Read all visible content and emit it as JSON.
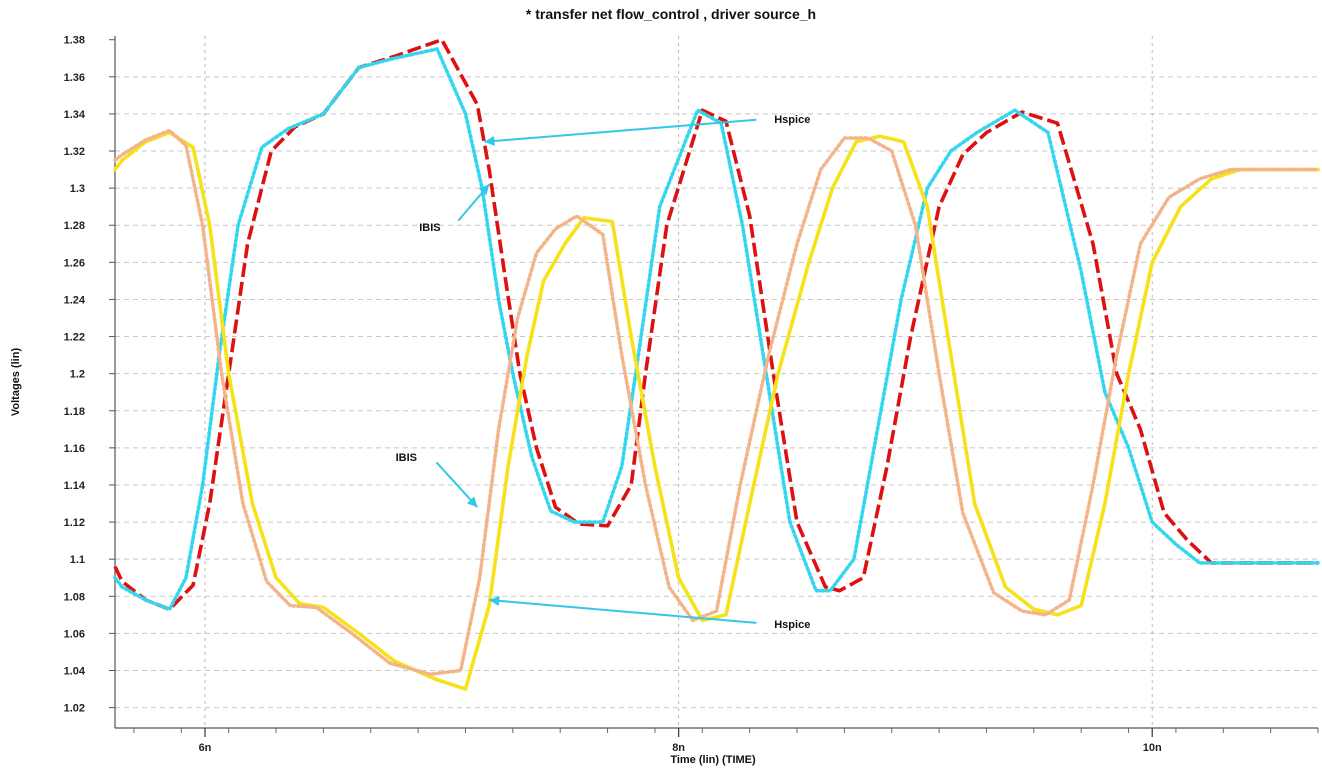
{
  "chart_data": {
    "type": "line",
    "title": "* transfer net flow_control , driver source_h",
    "xlabel": "Time (lin) (TIME)",
    "ylabel": "Voltages (lin)",
    "xlim": [
      5.62,
      10.7
    ],
    "ylim": [
      1.009,
      1.382
    ],
    "grid": true,
    "x_ticks": [
      {
        "value": 6,
        "label": "6n"
      },
      {
        "value": 8,
        "label": "8n"
      },
      {
        "value": 10,
        "label": "10n"
      }
    ],
    "y_ticks": [
      {
        "value": 1.38,
        "label": "1.38"
      },
      {
        "value": 1.36,
        "label": "1.36"
      },
      {
        "value": 1.34,
        "label": "1.34"
      },
      {
        "value": 1.32,
        "label": "1.32"
      },
      {
        "value": 1.3,
        "label": "1.3"
      },
      {
        "value": 1.28,
        "label": "1.28"
      },
      {
        "value": 1.26,
        "label": "1.26"
      },
      {
        "value": 1.24,
        "label": "1.24"
      },
      {
        "value": 1.22,
        "label": "1.22"
      },
      {
        "value": 1.2,
        "label": "1.2"
      },
      {
        "value": 1.18,
        "label": "1.18"
      },
      {
        "value": 1.16,
        "label": "1.16"
      },
      {
        "value": 1.14,
        "label": "1.14"
      },
      {
        "value": 1.12,
        "label": "1.12"
      },
      {
        "value": 1.1,
        "label": "1.1"
      },
      {
        "value": 1.08,
        "label": "1.08"
      },
      {
        "value": 1.06,
        "label": "1.06"
      },
      {
        "value": 1.04,
        "label": "1.04"
      },
      {
        "value": 1.02,
        "label": "1.02"
      }
    ],
    "series": [
      {
        "color": "#dd1111",
        "dash": "dashed",
        "x": [
          5.62,
          5.65,
          5.75,
          5.85,
          5.95,
          6.02,
          6.1,
          6.18,
          6.28,
          6.38,
          6.5,
          6.65,
          6.8,
          7.0,
          7.15,
          7.2,
          7.27,
          7.33,
          7.4,
          7.48,
          7.58,
          7.7,
          7.8,
          7.86,
          7.95,
          8.1,
          8.2,
          8.3,
          8.4,
          8.5,
          8.62,
          8.68,
          8.78,
          8.88,
          8.98,
          9.1,
          9.2,
          9.3,
          9.45,
          9.6,
          9.75,
          9.85,
          9.95,
          10.05,
          10.15,
          10.25,
          10.35,
          10.45,
          10.55,
          10.62,
          10.7
        ],
        "y": [
          1.096,
          1.088,
          1.078,
          1.073,
          1.086,
          1.13,
          1.2,
          1.27,
          1.32,
          1.333,
          1.34,
          1.365,
          1.371,
          1.38,
          1.345,
          1.31,
          1.25,
          1.2,
          1.16,
          1.128,
          1.119,
          1.118,
          1.14,
          1.2,
          1.28,
          1.342,
          1.336,
          1.285,
          1.2,
          1.12,
          1.085,
          1.083,
          1.09,
          1.15,
          1.22,
          1.29,
          1.318,
          1.33,
          1.341,
          1.335,
          1.27,
          1.2,
          1.17,
          1.125,
          1.11,
          1.098,
          1.098,
          1.098,
          1.098,
          1.098,
          1.098
        ]
      },
      {
        "color": "#33d6ee",
        "dash": "dotted",
        "x": [
          5.62,
          5.65,
          5.75,
          5.85,
          5.92,
          5.99,
          6.06,
          6.14,
          6.24,
          6.35,
          6.5,
          6.65,
          6.8,
          6.98,
          7.1,
          7.17,
          7.24,
          7.3,
          7.38,
          7.46,
          7.56,
          7.68,
          7.76,
          7.83,
          7.92,
          8.08,
          8.18,
          8.27,
          8.37,
          8.47,
          8.58,
          8.64,
          8.74,
          8.84,
          8.94,
          9.05,
          9.15,
          9.26,
          9.42,
          9.56,
          9.7,
          9.8,
          9.9,
          10.0,
          10.1,
          10.2,
          10.3,
          10.4,
          10.5,
          10.6,
          10.7
        ],
        "y": [
          1.09,
          1.085,
          1.078,
          1.073,
          1.09,
          1.14,
          1.21,
          1.28,
          1.322,
          1.332,
          1.34,
          1.365,
          1.37,
          1.375,
          1.34,
          1.3,
          1.24,
          1.2,
          1.155,
          1.126,
          1.12,
          1.12,
          1.15,
          1.21,
          1.29,
          1.342,
          1.335,
          1.28,
          1.2,
          1.12,
          1.083,
          1.083,
          1.1,
          1.17,
          1.24,
          1.3,
          1.32,
          1.33,
          1.342,
          1.33,
          1.255,
          1.19,
          1.16,
          1.12,
          1.108,
          1.098,
          1.098,
          1.098,
          1.098,
          1.098,
          1.098
        ]
      },
      {
        "color": "#f5e21a",
        "dash": "solid",
        "x": [
          5.62,
          5.65,
          5.75,
          5.85,
          5.95,
          6.02,
          6.1,
          6.2,
          6.3,
          6.4,
          6.5,
          6.65,
          6.8,
          6.98,
          7.1,
          7.2,
          7.28,
          7.36,
          7.43,
          7.52,
          7.6,
          7.72,
          7.8,
          7.9,
          8.0,
          8.1,
          8.2,
          8.3,
          8.42,
          8.55,
          8.65,
          8.75,
          8.85,
          8.95,
          9.05,
          9.15,
          9.25,
          9.38,
          9.5,
          9.6,
          9.7,
          9.8,
          9.9,
          10.0,
          10.12,
          10.25,
          10.37,
          10.45,
          10.55,
          10.63,
          10.7
        ],
        "y": [
          1.31,
          1.315,
          1.325,
          1.33,
          1.322,
          1.28,
          1.2,
          1.13,
          1.09,
          1.076,
          1.074,
          1.06,
          1.045,
          1.035,
          1.03,
          1.075,
          1.15,
          1.21,
          1.25,
          1.27,
          1.284,
          1.282,
          1.22,
          1.15,
          1.09,
          1.067,
          1.07,
          1.13,
          1.2,
          1.26,
          1.3,
          1.325,
          1.328,
          1.325,
          1.29,
          1.21,
          1.13,
          1.085,
          1.073,
          1.07,
          1.075,
          1.13,
          1.2,
          1.26,
          1.29,
          1.305,
          1.31,
          1.31,
          1.31,
          1.31,
          1.31
        ]
      },
      {
        "color": "#f4b48a",
        "dash": "dotted",
        "x": [
          5.62,
          5.65,
          5.75,
          5.85,
          5.92,
          5.99,
          6.07,
          6.16,
          6.26,
          6.36,
          6.47,
          6.62,
          6.78,
          6.95,
          7.08,
          7.16,
          7.24,
          7.32,
          7.4,
          7.48,
          7.57,
          7.68,
          7.76,
          7.86,
          7.96,
          8.06,
          8.16,
          8.26,
          8.38,
          8.5,
          8.6,
          8.7,
          8.8,
          8.9,
          9.0,
          9.1,
          9.2,
          9.33,
          9.45,
          9.55,
          9.65,
          9.75,
          9.85,
          9.95,
          10.07,
          10.2,
          10.33,
          10.42,
          10.52,
          10.62,
          10.7
        ],
        "y": [
          1.315,
          1.318,
          1.326,
          1.331,
          1.323,
          1.28,
          1.2,
          1.13,
          1.088,
          1.075,
          1.074,
          1.06,
          1.044,
          1.038,
          1.04,
          1.09,
          1.17,
          1.23,
          1.265,
          1.278,
          1.285,
          1.275,
          1.21,
          1.14,
          1.085,
          1.067,
          1.072,
          1.14,
          1.21,
          1.27,
          1.31,
          1.327,
          1.327,
          1.32,
          1.28,
          1.2,
          1.125,
          1.082,
          1.072,
          1.07,
          1.078,
          1.14,
          1.21,
          1.27,
          1.295,
          1.305,
          1.31,
          1.31,
          1.31,
          1.31,
          1.31
        ]
      }
    ],
    "annotations": [
      {
        "text": "Hspice",
        "x": 8.48,
        "y": 1.335,
        "arrow_to": [
          7.18,
          1.325
        ]
      },
      {
        "text": "IBIS",
        "x": 6.95,
        "y": 1.277,
        "arrow_to": [
          7.2,
          1.302
        ]
      },
      {
        "text": "IBIS",
        "x": 6.85,
        "y": 1.153,
        "arrow_to": [
          7.15,
          1.128
        ]
      },
      {
        "text": "Hspice",
        "x": 8.48,
        "y": 1.063,
        "arrow_to": [
          7.2,
          1.078
        ]
      }
    ]
  }
}
